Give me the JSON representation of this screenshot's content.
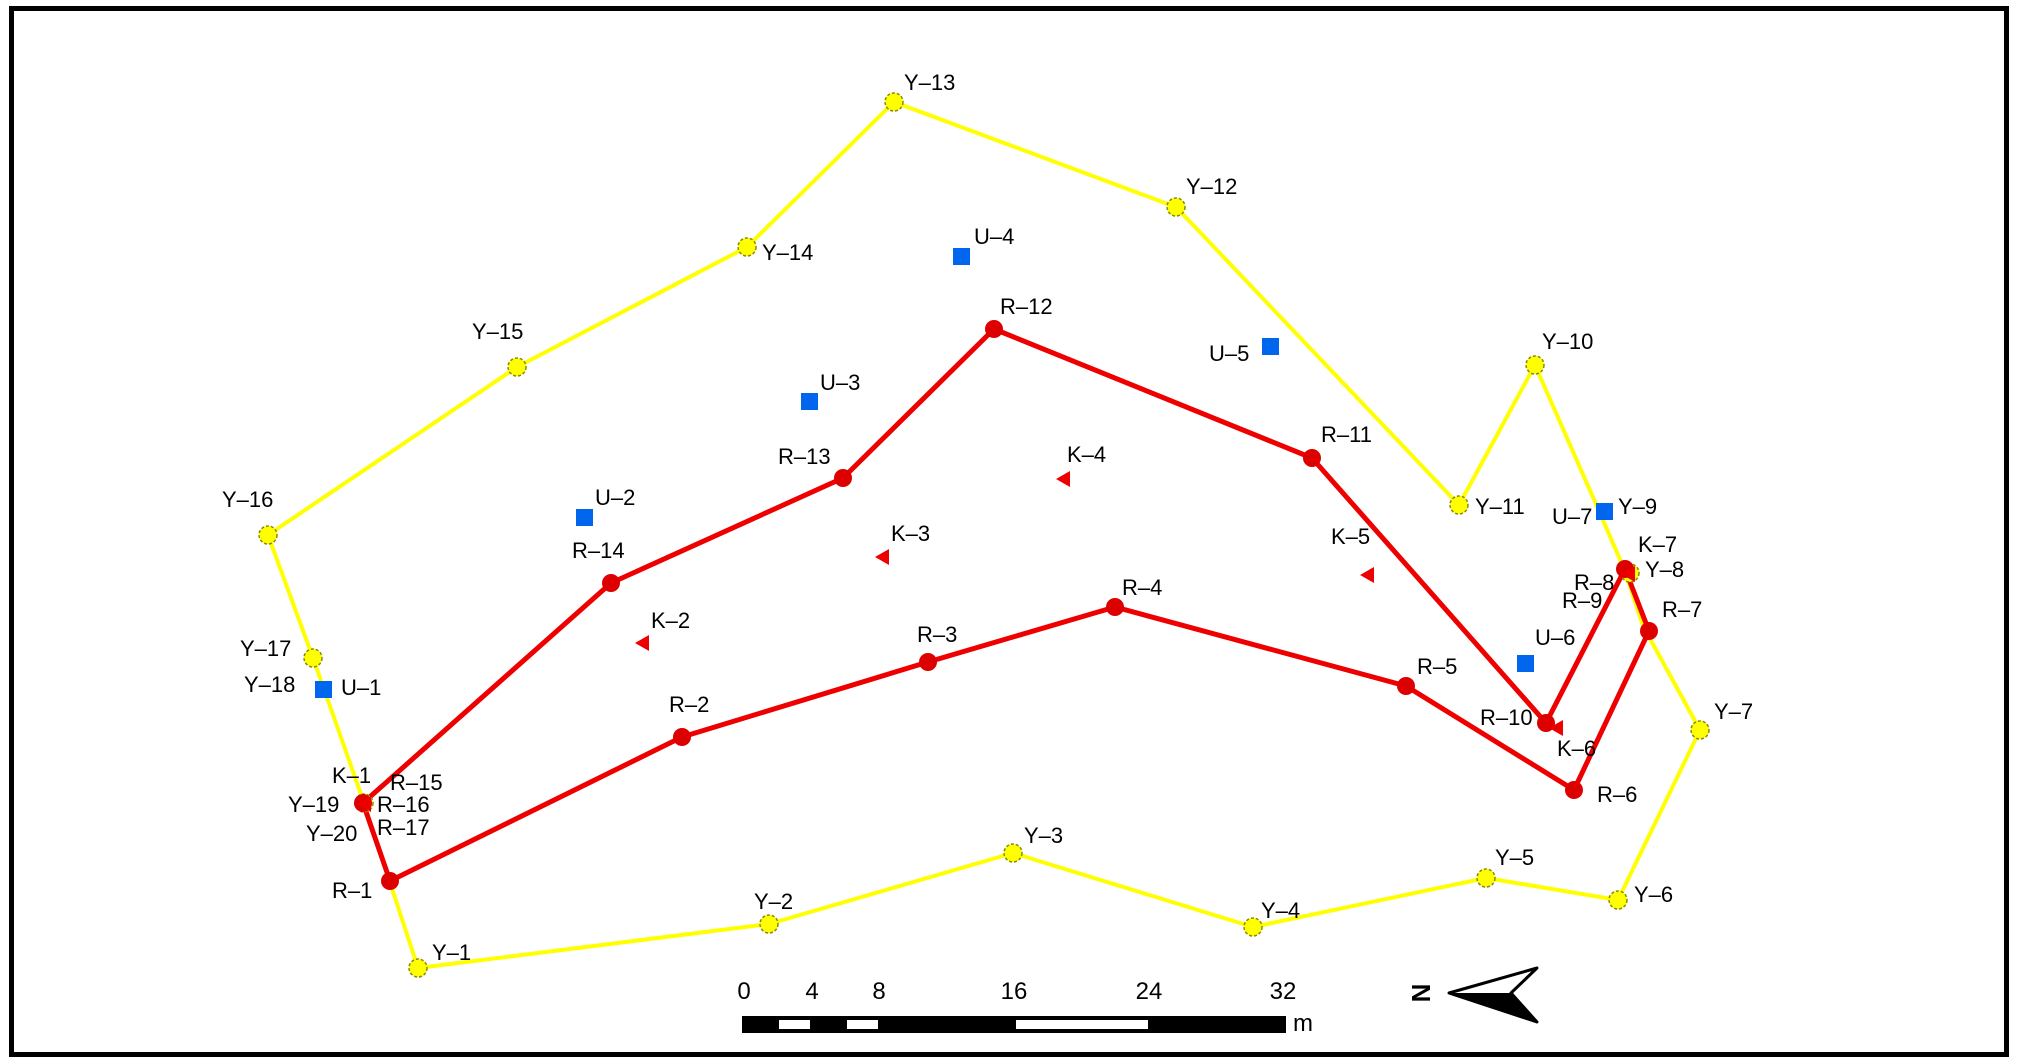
{
  "colors": {
    "yellow_line": "#ffff00",
    "yellow_point": "#ffff00",
    "red_line": "#ee0000",
    "red_point": "#dd0000",
    "u_square": "#0066ee",
    "k_triangle": "#ee0000",
    "frame": "#000000"
  },
  "yellow_points": [
    {
      "id": "Y-1",
      "label": "Y–1"
    },
    {
      "id": "Y-2",
      "label": "Y–2"
    },
    {
      "id": "Y-3",
      "label": "Y–3"
    },
    {
      "id": "Y-4",
      "label": "Y–4"
    },
    {
      "id": "Y-5",
      "label": "Y–5"
    },
    {
      "id": "Y-6",
      "label": "Y–6"
    },
    {
      "id": "Y-7",
      "label": "Y–7"
    },
    {
      "id": "Y-8",
      "label": "Y–8"
    },
    {
      "id": "Y-9",
      "label": "Y–9"
    },
    {
      "id": "Y-10",
      "label": "Y–10"
    },
    {
      "id": "Y-11",
      "label": "Y–11"
    },
    {
      "id": "Y-12",
      "label": "Y–12"
    },
    {
      "id": "Y-13",
      "label": "Y–13"
    },
    {
      "id": "Y-14",
      "label": "Y–14"
    },
    {
      "id": "Y-15",
      "label": "Y–15"
    },
    {
      "id": "Y-16",
      "label": "Y–16"
    },
    {
      "id": "Y-17",
      "label": "Y–17"
    },
    {
      "id": "Y-18",
      "label": "Y–18"
    },
    {
      "id": "Y-19",
      "label": "Y–19"
    },
    {
      "id": "Y-20",
      "label": "Y–20"
    }
  ],
  "red_points": [
    {
      "id": "R-1",
      "label": "R–1"
    },
    {
      "id": "R-2",
      "label": "R–2"
    },
    {
      "id": "R-3",
      "label": "R–3"
    },
    {
      "id": "R-4",
      "label": "R–4"
    },
    {
      "id": "R-5",
      "label": "R–5"
    },
    {
      "id": "R-6",
      "label": "R–6"
    },
    {
      "id": "R-7",
      "label": "R–7"
    },
    {
      "id": "R-8",
      "label": "R–8"
    },
    {
      "id": "R-9",
      "label": "R–9"
    },
    {
      "id": "R-10",
      "label": "R–10"
    },
    {
      "id": "R-11",
      "label": "R–11"
    },
    {
      "id": "R-12",
      "label": "R–12"
    },
    {
      "id": "R-13",
      "label": "R–13"
    },
    {
      "id": "R-14",
      "label": "R–14"
    },
    {
      "id": "R-15",
      "label": "R–15"
    },
    {
      "id": "R-16",
      "label": "R–16"
    },
    {
      "id": "R-17",
      "label": "R–17"
    }
  ],
  "u_points": [
    {
      "id": "U-1",
      "label": "U–1"
    },
    {
      "id": "U-2",
      "label": "U–2"
    },
    {
      "id": "U-3",
      "label": "U–3"
    },
    {
      "id": "U-4",
      "label": "U–4"
    },
    {
      "id": "U-5",
      "label": "U–5"
    },
    {
      "id": "U-6",
      "label": "U–6"
    },
    {
      "id": "U-7",
      "label": "U–7"
    }
  ],
  "k_points": [
    {
      "id": "K-1",
      "label": "K–1"
    },
    {
      "id": "K-2",
      "label": "K–2"
    },
    {
      "id": "K-3",
      "label": "K–3"
    },
    {
      "id": "K-4",
      "label": "K–4"
    },
    {
      "id": "K-5",
      "label": "K–5"
    },
    {
      "id": "K-6",
      "label": "K–6"
    },
    {
      "id": "K-7",
      "label": "K–7"
    }
  ],
  "scale_bar": {
    "ticks": [
      "0",
      "4",
      "8",
      "16",
      "24",
      "32"
    ],
    "unit": "m"
  },
  "north_arrow": {
    "label": "N",
    "icon": "north-arrow-icon"
  }
}
